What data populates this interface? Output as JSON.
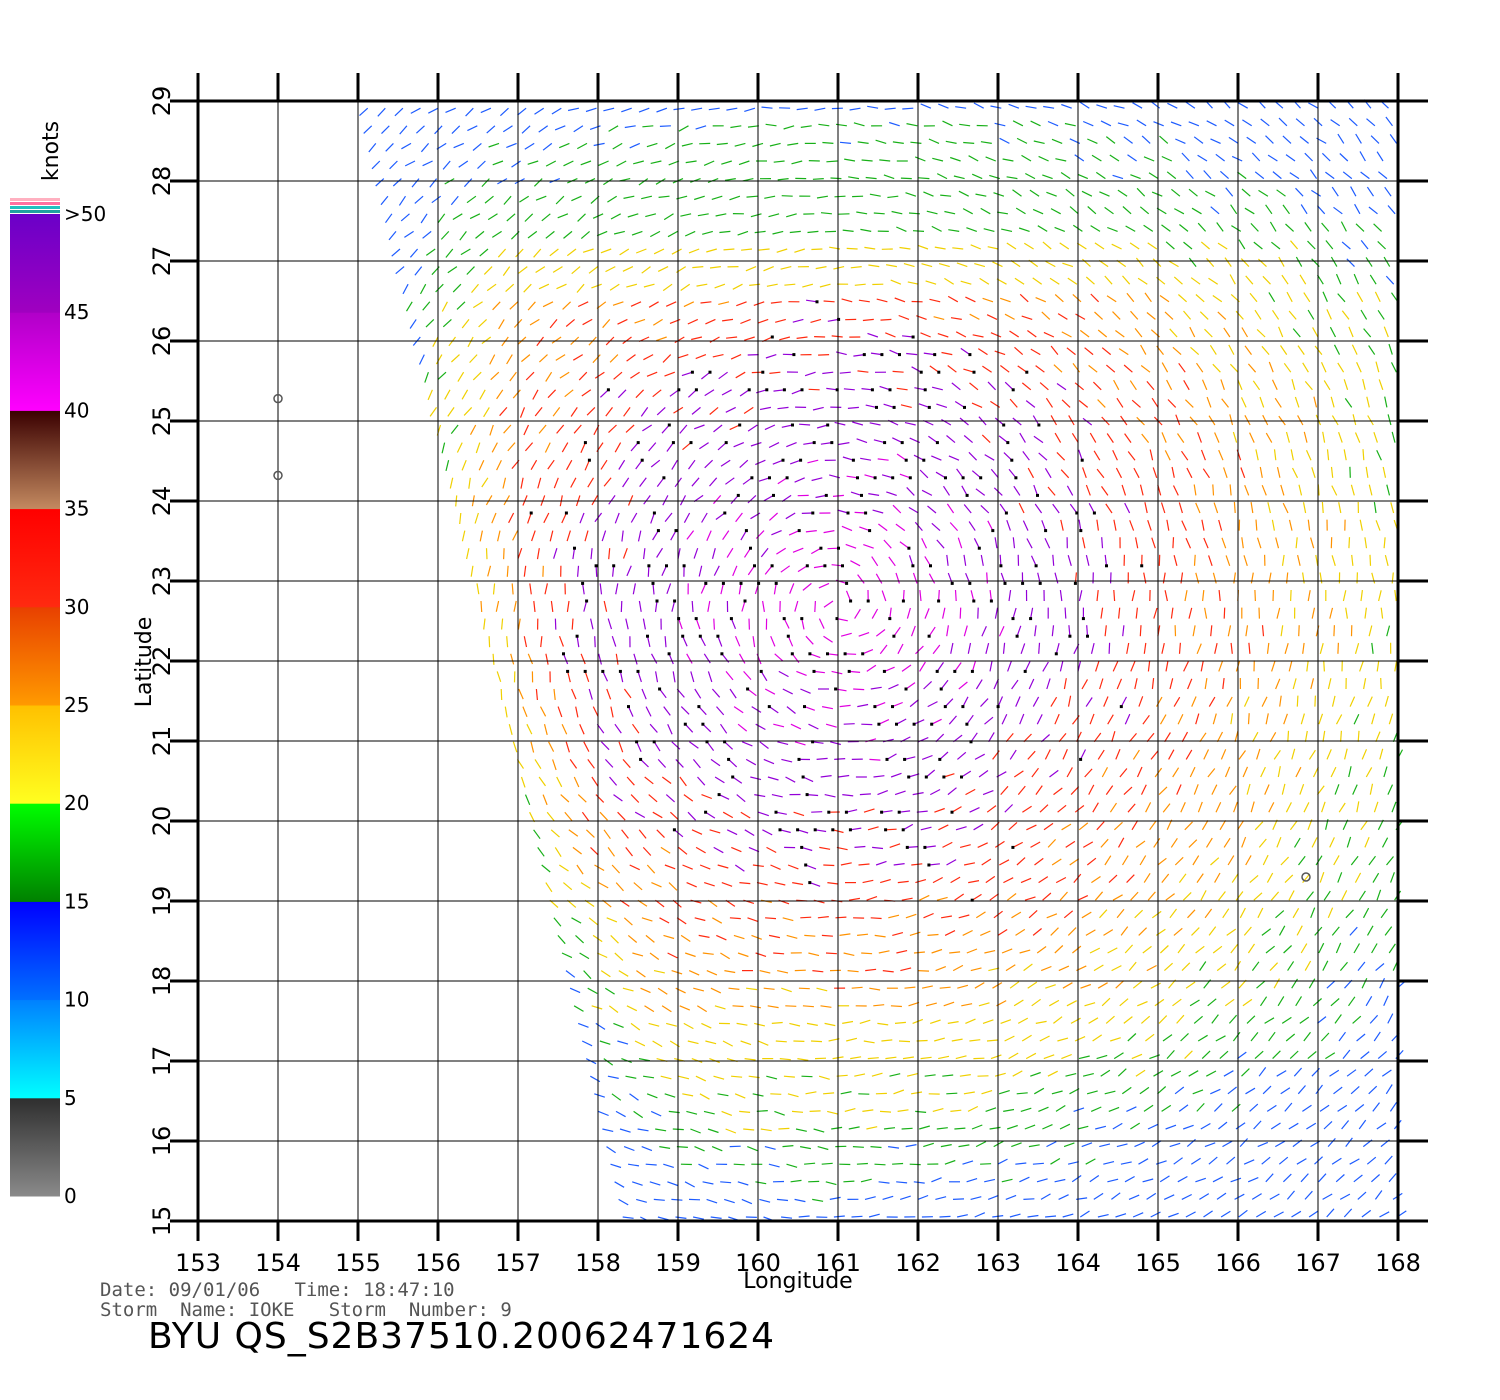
{
  "chart": {
    "xlabel": "Longitude",
    "ylabel": "Latitude",
    "x_ticks": [
      "153",
      "154",
      "155",
      "156",
      "157",
      "158",
      "159",
      "160",
      "161",
      "162",
      "163",
      "164",
      "165",
      "166",
      "167",
      "168"
    ],
    "y_ticks": [
      "15",
      "16",
      "17",
      "18",
      "19",
      "20",
      "21",
      "22",
      "23",
      "24",
      "25",
      "26",
      "27",
      "28",
      "29"
    ]
  },
  "legend": {
    "unit": "knots",
    "labels": [
      "0",
      "5",
      "10",
      "15",
      "20",
      "25",
      "30",
      "35",
      "40",
      "45",
      ">50"
    ],
    "bands": [
      {
        "range": "0-5",
        "from": "#8a8a8a",
        "to": "#2e2e2e"
      },
      {
        "range": "5-10",
        "from": "#00ffff",
        "to": "#0080ff"
      },
      {
        "range": "10-15",
        "from": "#0070ff",
        "to": "#0000ff"
      },
      {
        "range": "15-20",
        "from": "#008000",
        "to": "#00ff00"
      },
      {
        "range": "20-25",
        "from": "#ffff20",
        "to": "#ffc000"
      },
      {
        "range": "25-30",
        "from": "#ff9a00",
        "to": "#e84000"
      },
      {
        "range": "30-35",
        "from": "#ff2a10",
        "to": "#ff0000"
      },
      {
        "range": "35-40",
        "from": "#c48a60",
        "to": "#3a0000"
      },
      {
        "range": "40-45",
        "from": "#ff00ff",
        "to": "#b000c8"
      },
      {
        "range": "45-50",
        "from": "#a000c0",
        "to": "#6a00c8"
      }
    ]
  },
  "footer": {
    "date_line": "Date: 09/01/06   Time: 18:47:10",
    "storm_line": "Storm  Name: IOKE   Storm  Number: 9",
    "title": "BYU  QS_S2B37510.20062471624"
  }
}
